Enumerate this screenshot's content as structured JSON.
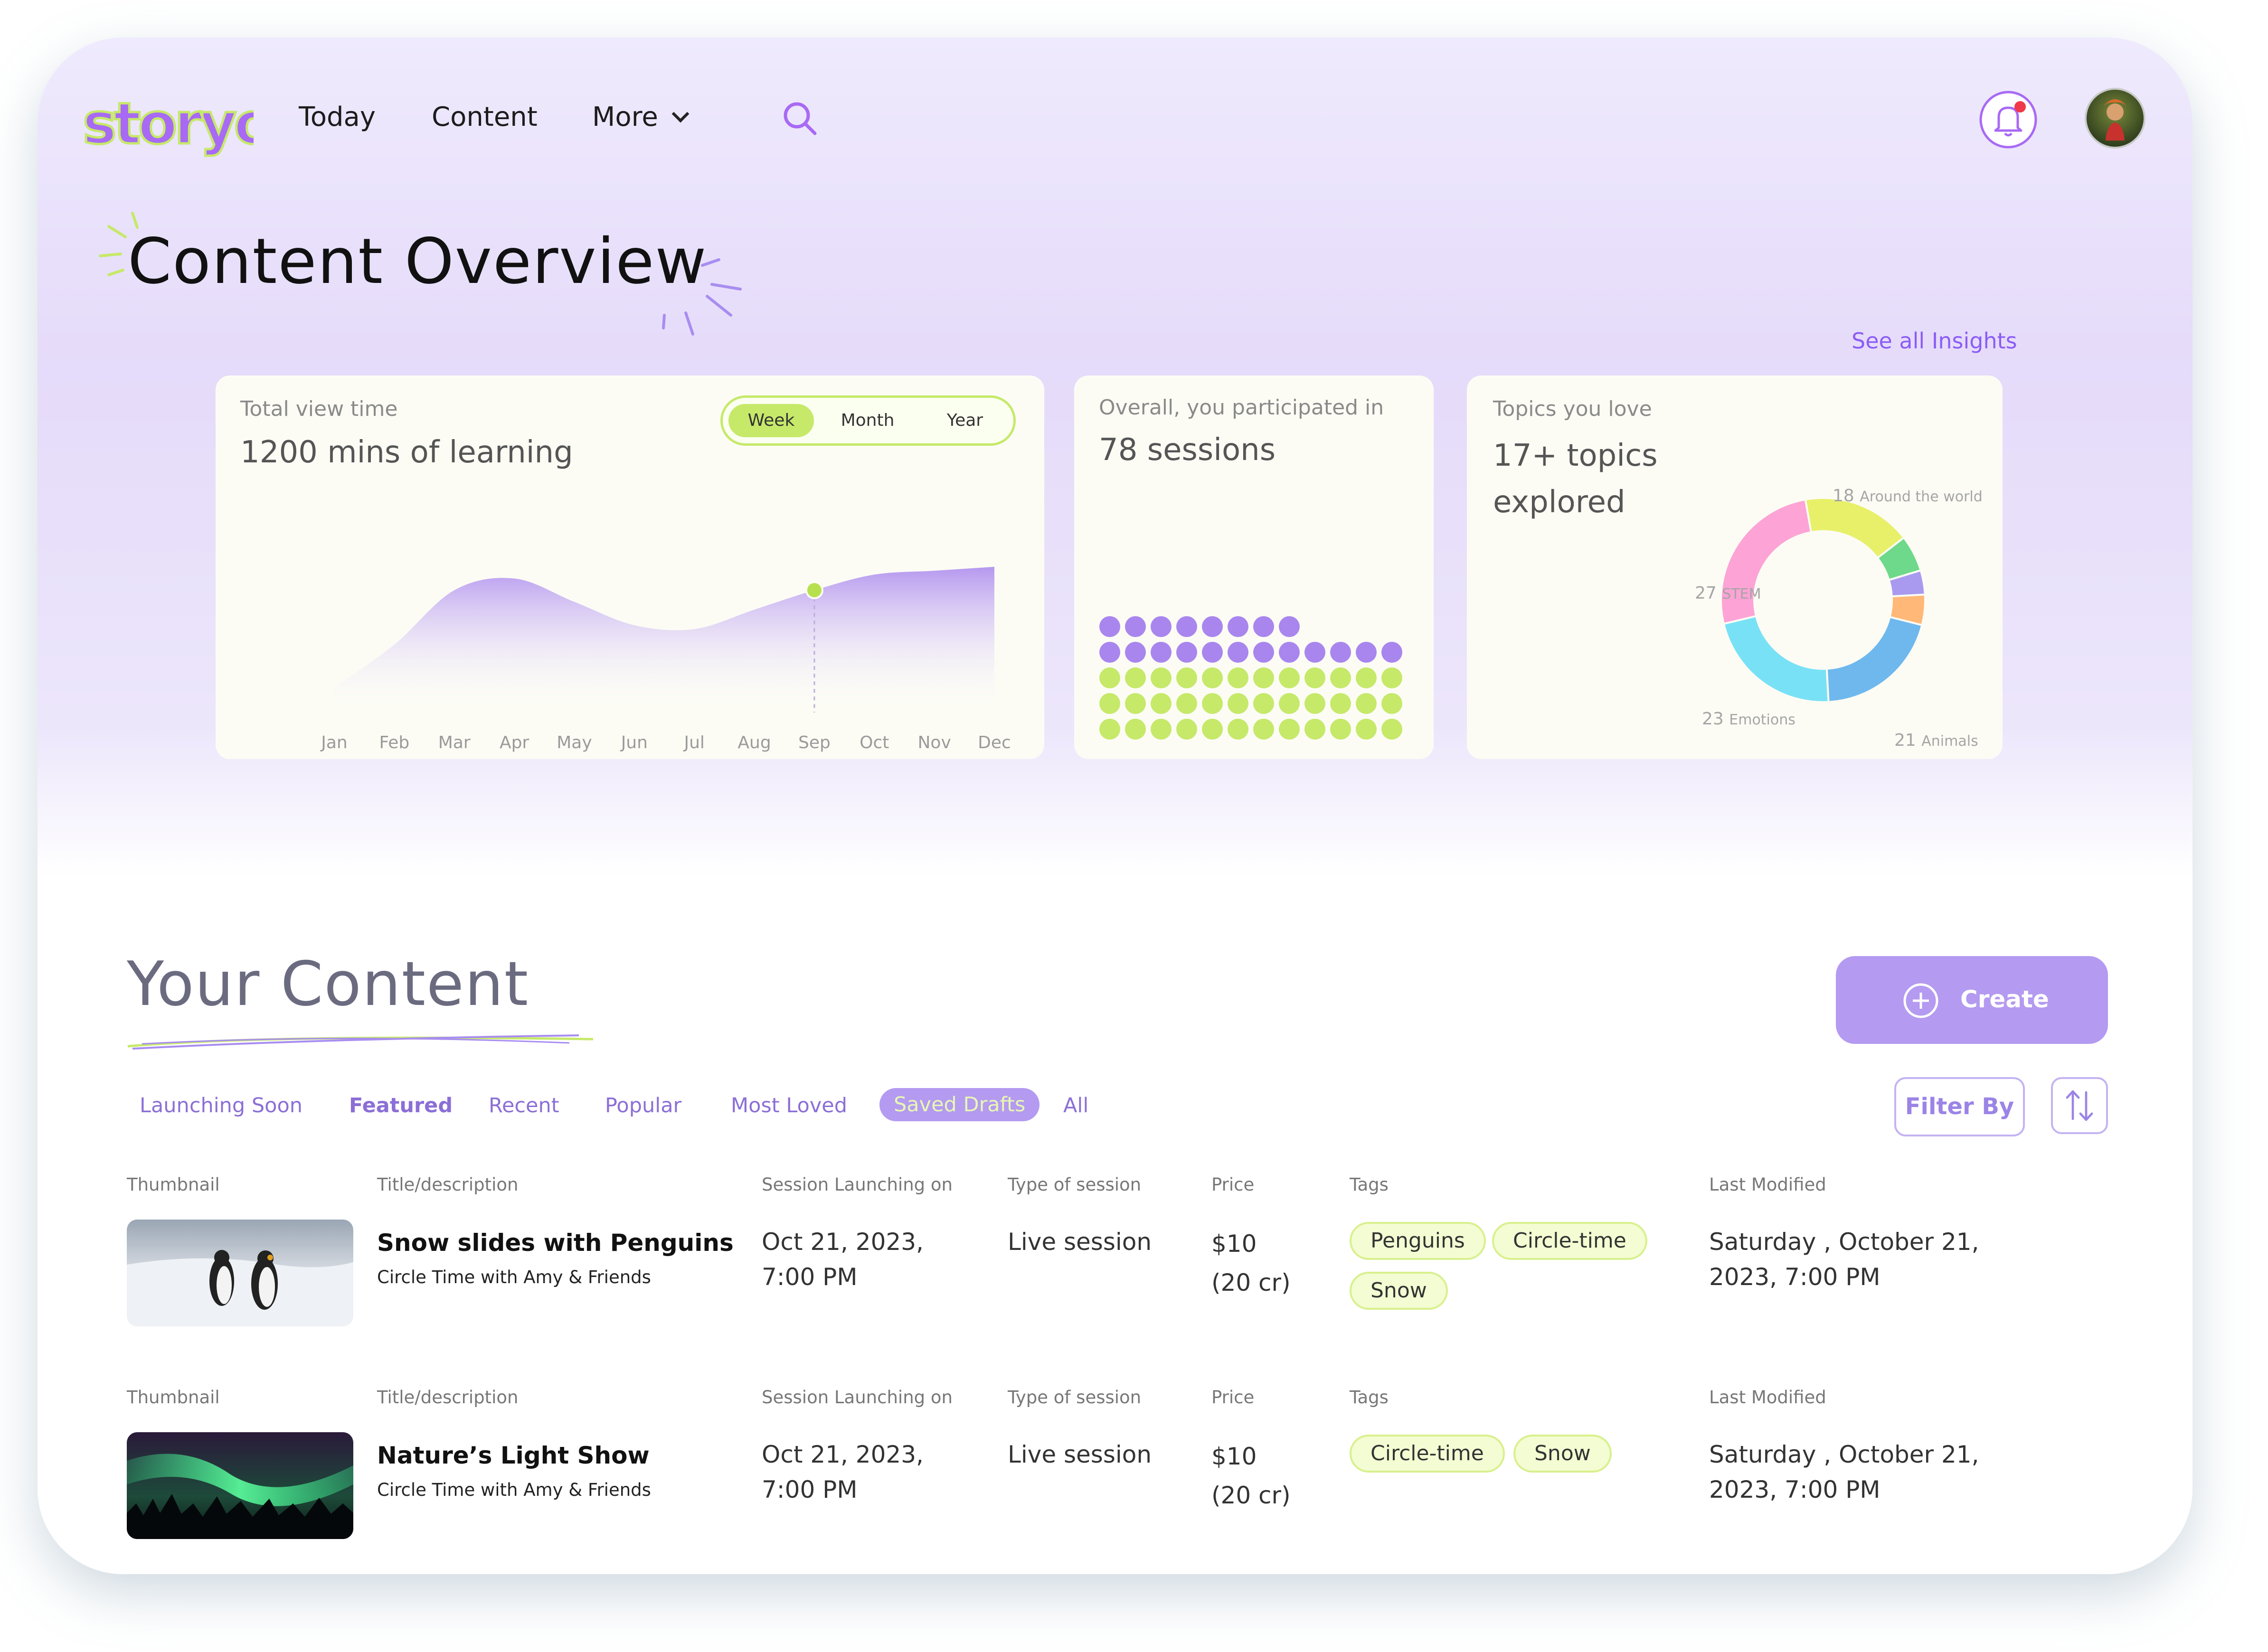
{
  "brand": {
    "name": "storyo",
    "primary": "#a86af4",
    "accent": "#c6e96a"
  },
  "nav": {
    "items": [
      "Today",
      "Content",
      "More"
    ],
    "search_icon": "search-icon",
    "bell_icon": "bell-icon"
  },
  "page": {
    "title": "Content Overview",
    "see_all": "See all Insights"
  },
  "view_card": {
    "label": "Total view time",
    "value": "1200 mins of learning",
    "range_options": [
      "Week",
      "Month",
      "Year"
    ],
    "selected_range": "Week"
  },
  "sessions_card": {
    "label": "Overall, you participated in",
    "value": "78 sessions",
    "dots_purple": 20,
    "dots_green": 36
  },
  "topics_card": {
    "label": "Topics you love",
    "value_line1": "17+ topics",
    "value_line2": "explored"
  },
  "chart_data": [
    {
      "type": "area",
      "categories": [
        "Jan",
        "Feb",
        "Mar",
        "Apr",
        "May",
        "Jun",
        "Jul",
        "Aug",
        "Sep",
        "Oct",
        "Nov",
        "Dec"
      ],
      "values": [
        8,
        30,
        58,
        64,
        52,
        40,
        38,
        48,
        58,
        66,
        68,
        70
      ],
      "highlight_index": 8,
      "ylim": [
        0,
        100
      ],
      "grid": false
    },
    {
      "type": "pie",
      "labels": [
        "Around the world",
        "STEM",
        "Emotions",
        "Animals"
      ],
      "label_values": [
        "18",
        "27",
        "23",
        "21"
      ],
      "slices": [
        {
          "value": 18,
          "color": "#e8f06a"
        },
        {
          "value": 6,
          "color": "#6ed98a"
        },
        {
          "value": 4,
          "color": "#a99af0"
        },
        {
          "value": 5,
          "color": "#ffb877"
        },
        {
          "value": 21,
          "color": "#6fb8ee"
        },
        {
          "value": 23,
          "color": "#79e1f5"
        },
        {
          "value": 27,
          "color": "#fda3d5"
        }
      ]
    }
  ],
  "your_content": {
    "title": "Your Content",
    "create_label": "Create",
    "filter_label": "Filter By",
    "tabs": [
      "Launching Soon",
      "Featured",
      "Recent",
      "Popular",
      "Most Loved",
      "Saved Drafts",
      "All"
    ],
    "active_tab": "Saved Drafts",
    "columns": [
      "Thumbnail",
      "Title/description",
      "Session Launching on",
      "Type of session",
      "Price",
      "Tags",
      "Last Modified"
    ],
    "rows": [
      {
        "title": "Snow slides with Penguins",
        "subtitle": "Circle Time with Amy & Friends",
        "launch_date": "Oct 21, 2023,",
        "launch_time": "7:00 PM",
        "type": "Live session",
        "price": "$10",
        "credits": "(20 cr)",
        "tags": [
          "Penguins",
          "Circle-time",
          "Snow"
        ],
        "modified_line1": "Saturday , October 21,",
        "modified_line2": "2023, 7:00 PM"
      },
      {
        "title": "Nature’s Light Show",
        "subtitle": "Circle Time with Amy & Friends",
        "launch_date": "Oct 21, 2023,",
        "launch_time": "7:00 PM",
        "type": "Live session",
        "price": "$10",
        "credits": "(20 cr)",
        "tags": [
          "Circle-time",
          "Snow"
        ],
        "modified_line1": "Saturday , October 21,",
        "modified_line2": "2023, 7:00 PM"
      }
    ]
  }
}
